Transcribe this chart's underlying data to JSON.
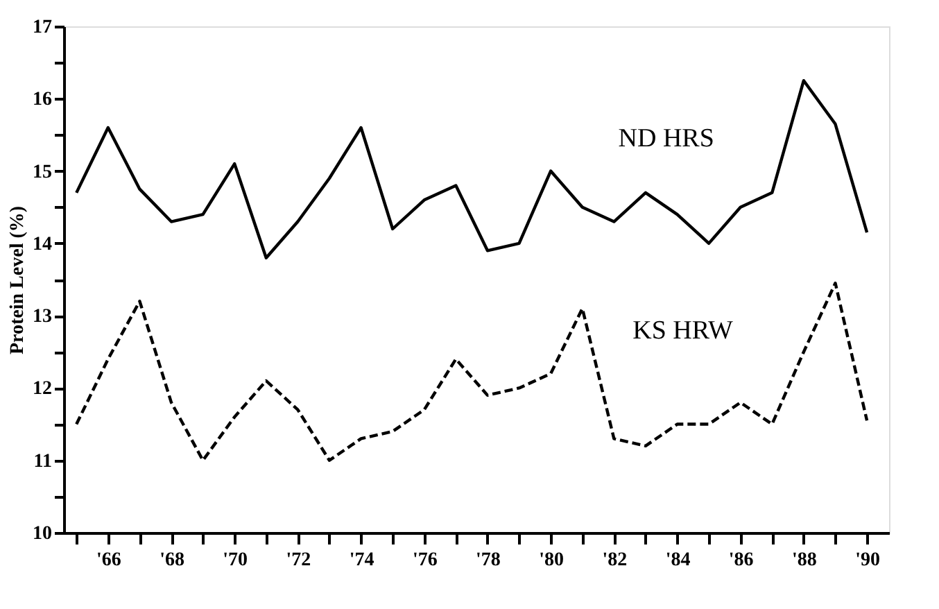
{
  "chart_data": {
    "type": "line",
    "ylabel": "Protein Level (%)",
    "x": [
      1965,
      1966,
      1967,
      1968,
      1969,
      1970,
      1971,
      1972,
      1973,
      1974,
      1975,
      1976,
      1977,
      1978,
      1979,
      1980,
      1981,
      1982,
      1983,
      1984,
      1985,
      1986,
      1987,
      1988,
      1989,
      1990
    ],
    "series": [
      {
        "name": "ND HRS",
        "color": "#000000",
        "line_style": "solid",
        "values": [
          14.7,
          15.6,
          14.75,
          14.3,
          14.4,
          15.1,
          13.8,
          14.3,
          14.9,
          15.6,
          14.2,
          14.6,
          14.8,
          13.9,
          14.0,
          15.0,
          14.5,
          14.3,
          14.7,
          14.4,
          14.0,
          14.5,
          14.7,
          16.25,
          15.65,
          14.15
        ]
      },
      {
        "name": "KS HRW",
        "color": "#000000",
        "line_style": "dashed",
        "values": [
          11.5,
          12.4,
          13.2,
          11.8,
          11.0,
          11.6,
          12.1,
          11.7,
          11.0,
          11.3,
          11.4,
          11.7,
          12.4,
          11.9,
          12.0,
          12.2,
          13.1,
          11.3,
          11.2,
          11.5,
          11.5,
          11.8,
          11.5,
          12.5,
          13.45,
          11.55
        ]
      }
    ],
    "xlim": [
      1964.6,
      1990.7
    ],
    "xticks": [
      {
        "value": 1965,
        "label": null
      },
      {
        "value": 1966,
        "label": "'66"
      },
      {
        "value": 1967,
        "label": null
      },
      {
        "value": 1968,
        "label": "'68"
      },
      {
        "value": 1969,
        "label": null
      },
      {
        "value": 1970,
        "label": "'70"
      },
      {
        "value": 1971,
        "label": null
      },
      {
        "value": 1972,
        "label": "'72"
      },
      {
        "value": 1973,
        "label": null
      },
      {
        "value": 1974,
        "label": "'74"
      },
      {
        "value": 1975,
        "label": null
      },
      {
        "value": 1976,
        "label": "'76"
      },
      {
        "value": 1977,
        "label": null
      },
      {
        "value": 1978,
        "label": "'78"
      },
      {
        "value": 1979,
        "label": null
      },
      {
        "value": 1980,
        "label": "'80"
      },
      {
        "value": 1981,
        "label": null
      },
      {
        "value": 1982,
        "label": "'82"
      },
      {
        "value": 1983,
        "label": null
      },
      {
        "value": 1984,
        "label": "'84"
      },
      {
        "value": 1985,
        "label": null
      },
      {
        "value": 1986,
        "label": "'86"
      },
      {
        "value": 1987,
        "label": null
      },
      {
        "value": 1988,
        "label": "'88"
      },
      {
        "value": 1989,
        "label": null
      },
      {
        "value": 1990,
        "label": "'90"
      }
    ],
    "ylim": [
      10,
      17
    ],
    "yticks": [
      10,
      {
        "value": 10.5,
        "label": null
      },
      11,
      {
        "value": 11.5,
        "label": null
      },
      12,
      {
        "value": 12.5,
        "label": null
      },
      13,
      {
        "value": 13.5,
        "label": null
      },
      14,
      {
        "value": 14.5,
        "label": null
      },
      15,
      {
        "value": 15.5,
        "label": null
      },
      16,
      {
        "value": 16.5,
        "label": null
      },
      17
    ],
    "grid": false,
    "marker": "none"
  }
}
